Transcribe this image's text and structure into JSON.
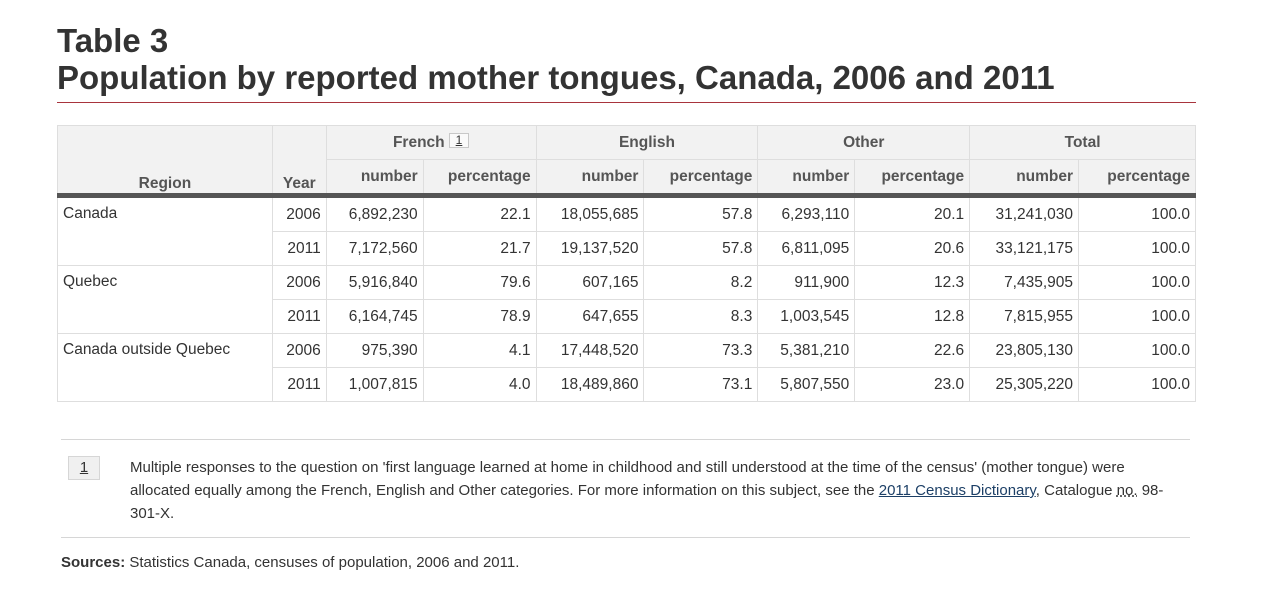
{
  "title": {
    "line1": "Table 3",
    "line2": "Population by reported mother tongues, Canada, 2006 and 2011"
  },
  "table": {
    "region_header": "Region",
    "year_header": "Year",
    "groups": [
      "French",
      "English",
      "Other",
      "Total"
    ],
    "french_footnote_ref": "1",
    "sub_headers": [
      "number",
      "percentage",
      "number",
      "percentage",
      "number",
      "percentage",
      "number",
      "percentage"
    ],
    "regions": [
      {
        "name": "Canada",
        "rows": [
          {
            "year": "2006",
            "values": [
              "6,892,230",
              "22.1",
              "18,055,685",
              "57.8",
              "6,293,110",
              "20.1",
              "31,241,030",
              "100.0"
            ]
          },
          {
            "year": "2011",
            "values": [
              "7,172,560",
              "21.7",
              "19,137,520",
              "57.8",
              "6,811,095",
              "20.6",
              "33,121,175",
              "100.0"
            ]
          }
        ]
      },
      {
        "name": "Quebec",
        "rows": [
          {
            "year": "2006",
            "values": [
              "5,916,840",
              "79.6",
              "607,165",
              "8.2",
              "911,900",
              "12.3",
              "7,435,905",
              "100.0"
            ]
          },
          {
            "year": "2011",
            "values": [
              "6,164,745",
              "78.9",
              "647,655",
              "8.3",
              "1,003,545",
              "12.8",
              "7,815,955",
              "100.0"
            ]
          }
        ]
      },
      {
        "name": "Canada outside Quebec",
        "rows": [
          {
            "year": "2006",
            "values": [
              "975,390",
              "4.1",
              "17,448,520",
              "73.3",
              "5,381,210",
              "22.6",
              "23,805,130",
              "100.0"
            ]
          },
          {
            "year": "2011",
            "values": [
              "1,007,815",
              "4.0",
              "18,489,860",
              "73.1",
              "5,807,550",
              "23.0",
              "25,305,220",
              "100.0"
            ]
          }
        ]
      }
    ]
  },
  "footnote": {
    "number": "1",
    "text_before_link": "Multiple responses to the question on 'first language learned at home in childhood and still understood at the time of the census' (mother tongue) were allocated equally among the French, English and Other categories. For more information on this subject, see the ",
    "link_text": "2011 Census Dictionary",
    "text_after_link": ", Catalogue ",
    "abbr_text": "no.",
    "text_end": " 98-301-X."
  },
  "sources": {
    "label": "Sources:",
    "text": " Statistics Canada, censuses of population, 2006 and 2011."
  },
  "colors": {
    "title_rule": "#a8343d",
    "header_bg": "#f2f2f2",
    "header_divider": "#555555",
    "link": "#1c3f66"
  }
}
